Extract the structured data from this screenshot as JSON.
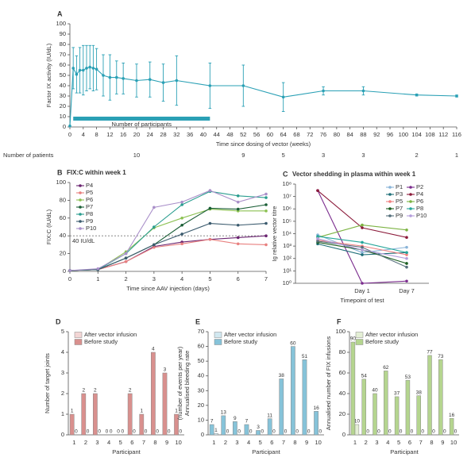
{
  "chart_data": [
    {
      "type": "line",
      "panel": "A",
      "ylabel": "Factor IX activity (IU/dL)",
      "xlabel": "Time since dosing of vector (weeks)",
      "x": [
        0,
        1,
        2,
        3,
        4,
        5,
        6,
        7,
        8,
        10,
        12,
        14,
        16,
        20,
        24,
        28,
        32,
        42,
        52,
        64,
        76,
        88,
        104,
        116
      ],
      "series": [
        {
          "color": "#2aa0b5",
          "values": [
            1,
            57,
            51,
            55,
            55,
            57,
            58,
            57,
            56,
            50,
            48,
            48,
            47,
            45,
            46,
            43,
            45,
            40,
            40,
            29,
            35,
            35,
            31,
            30
          ],
          "errors": [
            0,
            20,
            18,
            22,
            24,
            22,
            21,
            22,
            20,
            20,
            22,
            16,
            15,
            16,
            17,
            18,
            24,
            22,
            20,
            14,
            4,
            4,
            1,
            1
          ]
        }
      ],
      "xlim": [
        0,
        116
      ],
      "xticks": [
        0,
        4,
        8,
        12,
        16,
        20,
        24,
        28,
        32,
        36,
        40,
        44,
        48,
        52,
        56,
        60,
        64,
        68,
        72,
        76,
        80,
        84,
        88,
        92,
        96,
        100,
        104,
        108,
        112,
        116
      ],
      "ylim": [
        0,
        100
      ],
      "yticks": [
        0,
        10,
        20,
        30,
        40,
        50,
        60,
        70,
        80,
        90,
        100
      ],
      "bar_annotation": "Number of participants",
      "patients": {
        "label": "Number of patients",
        "x": [
          20,
          52,
          64,
          76,
          88,
          104,
          116
        ],
        "values": [
          10,
          9,
          5,
          3,
          3,
          2,
          1
        ]
      }
    },
    {
      "type": "line",
      "panel": "B",
      "title": "FIX:C within week 1",
      "ylabel": "FIX:C (IU/dL)",
      "xlabel": "Time since AAV injection (days)",
      "x": [
        0,
        1,
        2,
        3,
        4,
        5,
        6,
        7
      ],
      "xlim": [
        0,
        7
      ],
      "xticks": [
        0,
        1,
        2,
        3,
        4,
        5,
        6,
        7
      ],
      "ylim": [
        0,
        100
      ],
      "yticks": [
        0,
        20,
        40,
        60,
        80,
        100
      ],
      "legend": "upper left",
      "legend_columns": 1,
      "reference": {
        "value": 40,
        "label": "40 IU/dL"
      },
      "series": [
        {
          "name": "P4",
          "color": "#6a2470",
          "values": [
            1,
            2,
            11,
            28,
            33,
            36,
            38,
            40
          ]
        },
        {
          "name": "P5",
          "color": "#e8807f",
          "values": [
            1,
            2,
            11,
            27,
            31,
            36,
            31,
            30
          ]
        },
        {
          "name": "P6",
          "color": "#8cc152",
          "values": [
            1,
            2,
            22,
            49,
            60,
            70,
            68,
            68
          ]
        },
        {
          "name": "P7",
          "color": "#1a5e36",
          "values": [
            1,
            2,
            15,
            30,
            52,
            71,
            70,
            75
          ]
        },
        {
          "name": "P8",
          "color": "#2a9d8f",
          "values": [
            1,
            2,
            20,
            50,
            75,
            90,
            85,
            83
          ]
        },
        {
          "name": "P9",
          "color": "#3b5b6e",
          "values": [
            1,
            2,
            15,
            30,
            42,
            54,
            52,
            54
          ]
        },
        {
          "name": "P10",
          "color": "#a98fc9",
          "values": [
            1,
            3,
            20,
            72,
            78,
            91,
            78,
            87
          ]
        }
      ]
    },
    {
      "type": "line",
      "panel": "C",
      "title": "Vector shedding in plasma within week 1",
      "ylabel": "Ig relative vector titre",
      "xlabel": "Timepoint of test",
      "categories": [
        null,
        "Day 1",
        "Day 7"
      ],
      "log_scale": true,
      "ylim": [
        1,
        100000000
      ],
      "yticks": [
        {
          "value": 1,
          "label": "10⁰"
        },
        {
          "value": 10,
          "label": "10¹"
        },
        {
          "value": 100,
          "label": "10²"
        },
        {
          "value": 1000,
          "label": "10³"
        },
        {
          "value": 10000,
          "label": "10⁴"
        },
        {
          "value": 100000,
          "label": "10⁵"
        },
        {
          "value": 1000000,
          "label": "10⁶"
        },
        {
          "value": 10000000,
          "label": "10⁷"
        },
        {
          "value": 100000000,
          "label": "10⁸"
        }
      ],
      "legend": "upper right",
      "legend_columns": 2,
      "series": [
        {
          "name": "P1",
          "color": "#8ab4d8",
          "values": [
            8000,
            300,
            800
          ]
        },
        {
          "name": "P2",
          "color": "#7b2d8e",
          "values": [
            30000000,
            1,
            1.5
          ]
        },
        {
          "name": "P3",
          "color": "#1f6f78",
          "values": [
            1500,
            200,
            300
          ]
        },
        {
          "name": "P4",
          "color": "#8b1a3a",
          "values": [
            30000000,
            30000,
            5000
          ]
        },
        {
          "name": "P5",
          "color": "#f08080",
          "values": [
            3000,
            1000,
            200
          ]
        },
        {
          "name": "P6",
          "color": "#7cb342",
          "values": [
            5000,
            50000,
            20000
          ]
        },
        {
          "name": "P7",
          "color": "#1b5e20",
          "values": [
            2000,
            500,
            40
          ]
        },
        {
          "name": "P8",
          "color": "#26a69a",
          "values": [
            6000,
            2000,
            300
          ]
        },
        {
          "name": "P9",
          "color": "#546e7a",
          "values": [
            2500,
            800,
            20
          ]
        },
        {
          "name": "P10",
          "color": "#b39ddb",
          "values": [
            4000,
            500,
            100
          ]
        }
      ]
    },
    {
      "type": "bar",
      "panel": "D",
      "ylabel": "Number of target joints",
      "xlabel": "Participant",
      "categories": [
        "1",
        "2",
        "3",
        "4",
        "5",
        "6",
        "7",
        "8",
        "9",
        "10"
      ],
      "ylim": [
        0,
        5
      ],
      "yticks": [
        0,
        1,
        2,
        3,
        4,
        5
      ],
      "legend": "upper left",
      "series": [
        {
          "name": "After vector infusion",
          "color": "#f3d6d5",
          "values": [
            0,
            0,
            0,
            0,
            0,
            0,
            0,
            0,
            0,
            0
          ]
        },
        {
          "name": "Before study",
          "color": "#d9908e",
          "values": [
            1,
            2,
            2,
            0,
            0,
            2,
            1,
            4,
            3,
            1
          ]
        }
      ]
    },
    {
      "type": "bar",
      "panel": "E",
      "ylabel": [
        "Annualised bleeding rate",
        "(number of events per year)"
      ],
      "xlabel": "Participant",
      "categories": [
        "1",
        "2",
        "3",
        "4",
        "5",
        "6",
        "7",
        "8",
        "9",
        "10"
      ],
      "ylim": [
        0,
        70
      ],
      "yticks": [
        0,
        10,
        20,
        30,
        40,
        50,
        60,
        70
      ],
      "legend": "upper left",
      "series": [
        {
          "name": "After vector infusion",
          "color": "#d2e8f0",
          "values": [
            1,
            0,
            0,
            0,
            0,
            0,
            0,
            0,
            0,
            0
          ]
        },
        {
          "name": "Before study",
          "color": "#86c3d9",
          "values": [
            7,
            13,
            9,
            7,
            3,
            11,
            38,
            60,
            51,
            16
          ]
        }
      ]
    },
    {
      "type": "bar",
      "panel": "F",
      "ylabel": "Annualised number of FIX infusions",
      "xlabel": "Participant",
      "categories": [
        "1",
        "2",
        "3",
        "4",
        "5",
        "6",
        "7",
        "8",
        "9",
        "10"
      ],
      "ylim": [
        0,
        100
      ],
      "yticks": [
        0,
        20,
        40,
        60,
        80,
        100
      ],
      "legend": "upper left",
      "series": [
        {
          "name": "After vector infusion",
          "color": "#e4efd5",
          "values": [
            10,
            0,
            0,
            0,
            0,
            0,
            0,
            0,
            0,
            0
          ]
        },
        {
          "name": "Before study",
          "color": "#b5d58f",
          "values": [
            90,
            54,
            40,
            62,
            37,
            53,
            38,
            77,
            73,
            16
          ]
        }
      ]
    }
  ]
}
